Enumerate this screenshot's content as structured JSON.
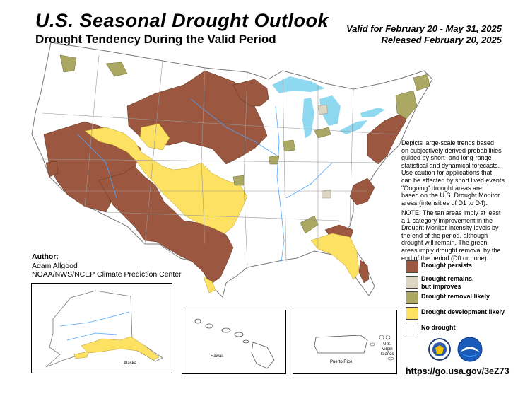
{
  "header": {
    "title": "U.S. Seasonal Drought Outlook",
    "subtitle": "Drought Tendency During the Valid Period",
    "valid": "Valid for February 20 - May 31, 2025",
    "released": "Released February 20, 2025"
  },
  "description": {
    "lines": [
      "Depicts large-scale trends based",
      "on subjectively derived probabilities",
      "guided by short- and long-range",
      "statistical and dynamical forecasts.",
      "Use caution for applications that",
      "can be affected by short lived events.",
      "\"Ongoing\" drought areas are",
      "based on the U.S. Drought Monitor",
      "areas (intensities of D1 to D4)."
    ],
    "note_lines": [
      "NOTE: The tan areas imply at least",
      "a 1-category improvement in the",
      "Drought Monitor intensity levels by",
      "the end of the period, although",
      "drought will remain. The green",
      "areas imply drought removal by the",
      "end of the period (D0 or none)."
    ]
  },
  "legend": [
    {
      "line1": "Drought persists",
      "line2": "",
      "color": "#9b573f"
    },
    {
      "line1": "Drought remains,",
      "line2": "but improves",
      "color": "#ddd6c2"
    },
    {
      "line1": "Drought removal likely",
      "line2": "",
      "color": "#aaa862"
    },
    {
      "line1": "Drought development likely",
      "line2": "",
      "color": "#fde163"
    },
    {
      "line1": "No drought",
      "line2": "",
      "color": "#ffffff"
    }
  ],
  "author": {
    "label": "Author:",
    "name": "Adam Allgood",
    "org": "NOAA/NWS/NCEP Climate Prediction Center"
  },
  "insets": {
    "alaska": "Alaska",
    "hawaii": "Hawaii",
    "puerto_rico": "Puerto Rico",
    "usvi_line1": "U.S. Virgin",
    "usvi_line2": "Islands"
  },
  "url": "https://go.usa.gov/3eZ73",
  "logos": [
    "commerce-seal-icon",
    "noaa-logo-icon"
  ]
}
